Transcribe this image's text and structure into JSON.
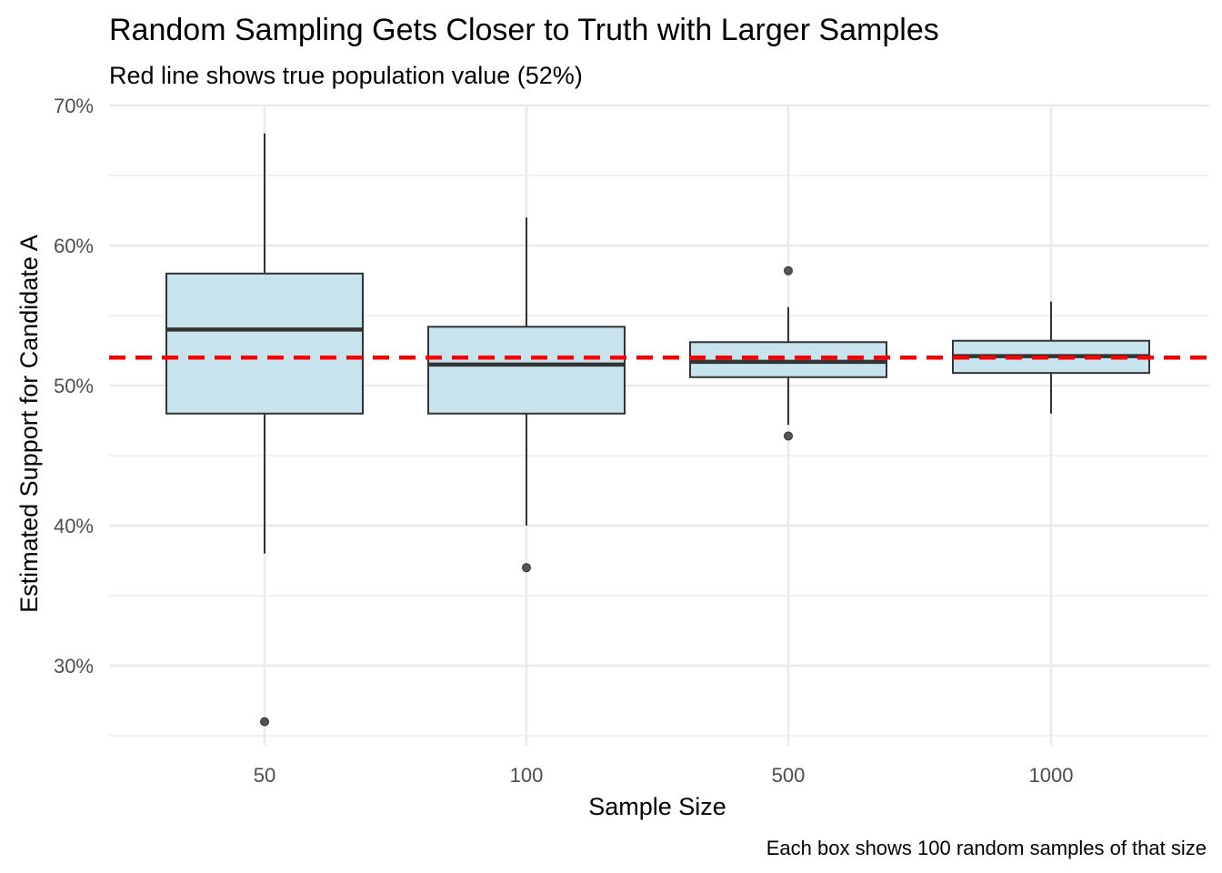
{
  "chart_data": {
    "type": "box",
    "title": "Random Sampling Gets Closer to Truth with Larger Samples",
    "subtitle": "Red line shows true population value (52%)",
    "xlabel": "Sample Size",
    "ylabel": "Estimated Support for Candidate A",
    "caption": "Each box shows 100 random samples of that size",
    "categories": [
      "50",
      "100",
      "500",
      "1000"
    ],
    "y_ticks": [
      0.3,
      0.4,
      0.5,
      0.6,
      0.7
    ],
    "y_tick_labels": [
      "30%",
      "40%",
      "50%",
      "60%",
      "70%"
    ],
    "ylim": [
      0.245,
      0.7
    ],
    "reference_line": {
      "value": 0.52,
      "color": "#ff0000",
      "style": "dashed"
    },
    "box_fill": "#c6e3ee",
    "box_stroke": "#333333",
    "outlier_color": "#555555",
    "grid": true,
    "boxes": [
      {
        "category": "50",
        "q1": 0.48,
        "median": 0.54,
        "q3": 0.58,
        "whisker_low": 0.38,
        "whisker_high": 0.68,
        "outliers": [
          0.26
        ]
      },
      {
        "category": "100",
        "q1": 0.48,
        "median": 0.515,
        "q3": 0.542,
        "whisker_low": 0.4,
        "whisker_high": 0.62,
        "outliers": [
          0.37
        ]
      },
      {
        "category": "500",
        "q1": 0.506,
        "median": 0.517,
        "q3": 0.531,
        "whisker_low": 0.472,
        "whisker_high": 0.556,
        "outliers": [
          0.582,
          0.464
        ]
      },
      {
        "category": "1000",
        "q1": 0.509,
        "median": 0.521,
        "q3": 0.532,
        "whisker_low": 0.48,
        "whisker_high": 0.56,
        "outliers": []
      }
    ]
  }
}
